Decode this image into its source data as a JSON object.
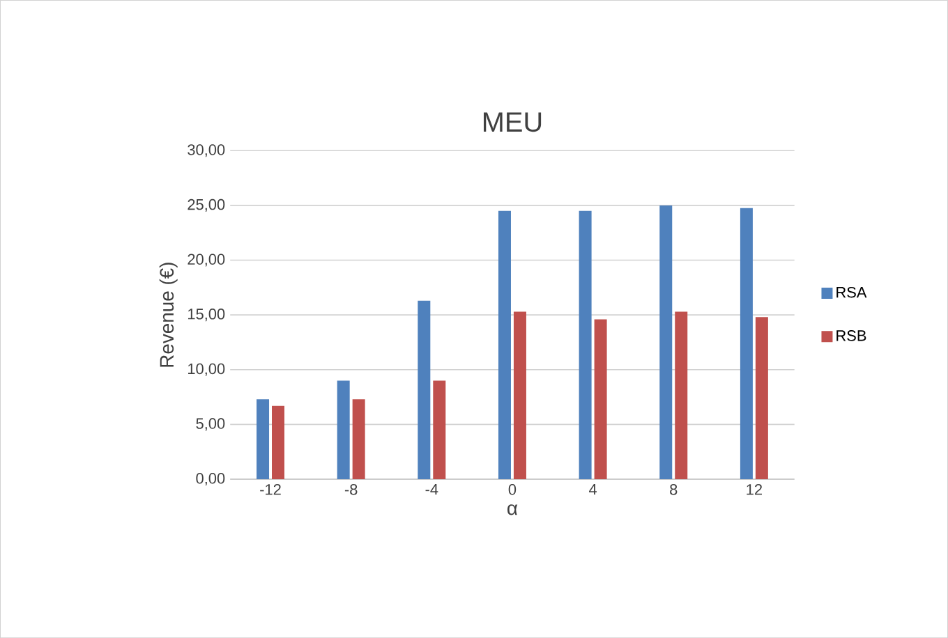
{
  "chart_data": {
    "type": "bar",
    "title": "MEU",
    "xlabel": "α",
    "ylabel": "Revenue (€)",
    "categories": [
      "-12",
      "-8",
      "-4",
      "0",
      "4",
      "8",
      "12"
    ],
    "series": [
      {
        "name": "RSA",
        "color": "#4f81bd",
        "values": [
          7.3,
          9.0,
          16.3,
          24.5,
          24.5,
          25.0,
          24.75
        ]
      },
      {
        "name": "RSB",
        "color": "#c0504d",
        "values": [
          6.7,
          7.3,
          9.0,
          15.3,
          14.6,
          15.3,
          14.8
        ]
      }
    ],
    "ylim": [
      0,
      30
    ],
    "yticks": [
      {
        "value": 0,
        "label": "0,00"
      },
      {
        "value": 5,
        "label": "5,00"
      },
      {
        "value": 10,
        "label": "10,00"
      },
      {
        "value": 15,
        "label": "15,00"
      },
      {
        "value": 20,
        "label": "20,00"
      },
      {
        "value": 25,
        "label": "25,00"
      },
      {
        "value": 30,
        "label": "30,00"
      }
    ],
    "grid": "y",
    "legend": "right"
  }
}
